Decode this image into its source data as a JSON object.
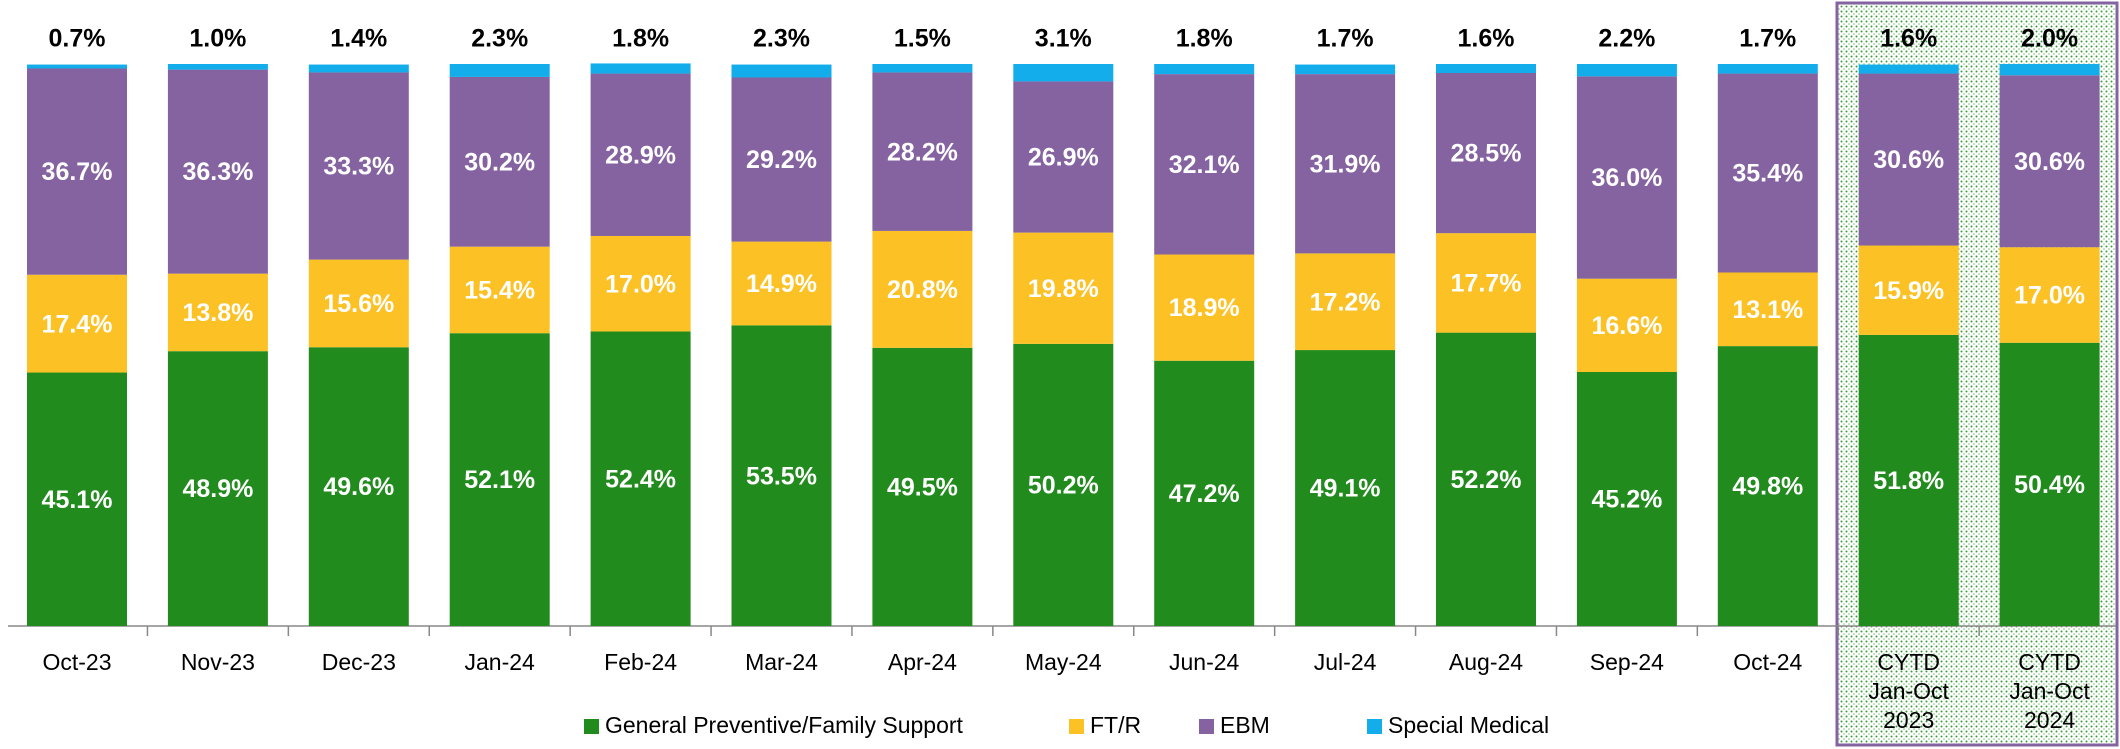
{
  "chart_data": {
    "type": "stacked_bar",
    "categories": [
      "Oct-23",
      "Nov-23",
      "Dec-23",
      "Jan-24",
      "Feb-24",
      "Mar-24",
      "Apr-24",
      "May-24",
      "Jun-24",
      "Jul-24",
      "Aug-24",
      "Sep-24",
      "Oct-24",
      "CYTD\nJan-Oct\n2023",
      "CYTD\nJan-Oct\n2024"
    ],
    "ylim": [
      0,
      100
    ],
    "legend": "bottom",
    "series": [
      {
        "name": "General Preventive/Family Support",
        "color": "#228b1e",
        "values": [
          45.1,
          48.9,
          49.6,
          52.1,
          52.4,
          53.5,
          49.5,
          50.2,
          47.2,
          49.1,
          52.2,
          45.2,
          49.8,
          51.8,
          50.4
        ],
        "value_labels": [
          "45.1%",
          "48.9%",
          "49.6%",
          "52.1%",
          "52.4%",
          "53.5%",
          "49.5%",
          "50.2%",
          "47.2%",
          "49.1%",
          "52.2%",
          "45.2%",
          "49.8%",
          "51.8%",
          "50.4%"
        ]
      },
      {
        "name": "FT/R",
        "color": "#fbc125",
        "values": [
          17.4,
          13.8,
          15.6,
          15.4,
          17.0,
          14.9,
          20.8,
          19.8,
          18.9,
          17.2,
          17.7,
          16.6,
          13.1,
          15.9,
          17.0
        ],
        "value_labels": [
          "17.4%",
          "13.8%",
          "15.6%",
          "15.4%",
          "17.0%",
          "14.9%",
          "20.8%",
          "19.8%",
          "18.9%",
          "17.2%",
          "17.7%",
          "16.6%",
          "13.1%",
          "15.9%",
          "17.0%"
        ]
      },
      {
        "name": "EBM",
        "color": "#8563a0",
        "values": [
          36.7,
          36.3,
          33.3,
          30.2,
          28.9,
          29.2,
          28.2,
          26.9,
          32.1,
          31.9,
          28.5,
          36.0,
          35.4,
          30.6,
          30.6
        ],
        "value_labels": [
          "36.7%",
          "36.3%",
          "33.3%",
          "30.2%",
          "28.9%",
          "29.2%",
          "28.2%",
          "26.9%",
          "32.1%",
          "31.9%",
          "28.5%",
          "36.0%",
          "35.4%",
          "30.6%",
          "30.6%"
        ]
      },
      {
        "name": "Special Medical",
        "color": "#12adea",
        "values": [
          0.7,
          1.0,
          1.4,
          2.3,
          1.8,
          2.3,
          1.5,
          3.1,
          1.8,
          1.7,
          1.6,
          2.2,
          1.7,
          1.6,
          2.0
        ],
        "value_labels": [
          "0.7%",
          "1.0%",
          "1.4%",
          "2.3%",
          "1.8%",
          "2.3%",
          "1.5%",
          "3.1%",
          "1.8%",
          "1.7%",
          "1.6%",
          "2.2%",
          "1.7%",
          "1.6%",
          "2.0%"
        ]
      }
    ]
  }
}
